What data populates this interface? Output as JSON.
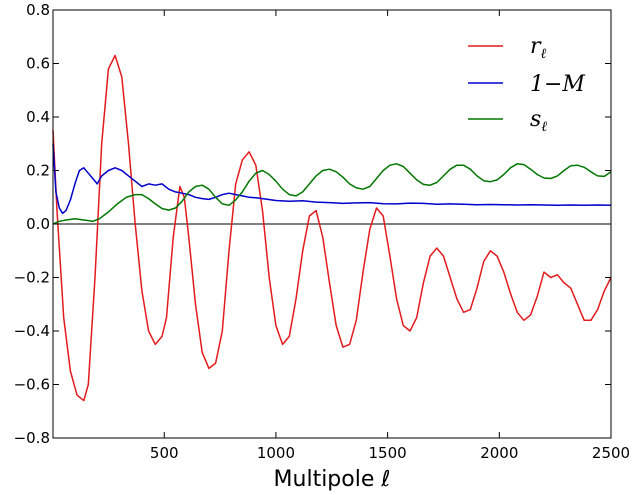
{
  "chart_data": {
    "type": "line",
    "xlabel": "Multipole ℓ",
    "ylabel": "",
    "xlim": [
      2,
      2500
    ],
    "ylim": [
      -0.8,
      0.8
    ],
    "x_ticks": [
      500,
      1000,
      1500,
      2000,
      2500
    ],
    "x_tick_labels": [
      "500",
      "1000",
      "1500",
      "2000",
      "2500"
    ],
    "y_ticks": [
      -0.8,
      -0.6,
      -0.4,
      -0.2,
      0.0,
      0.2,
      0.4,
      0.6,
      0.8
    ],
    "y_tick_labels": [
      "−0.8",
      "−0.6",
      "−0.4",
      "−0.2",
      "0.0",
      "0.2",
      "0.4",
      "0.6",
      "0.8"
    ],
    "zero_line": true,
    "grid": false,
    "legend_position": "top-right",
    "series": [
      {
        "name": "r_ℓ",
        "label_main": "r",
        "label_sub": "ℓ",
        "color": "#e41a1c",
        "x": [
          2,
          20,
          50,
          80,
          110,
          140,
          160,
          190,
          220,
          250,
          280,
          310,
          340,
          370,
          400,
          430,
          460,
          490,
          510,
          540,
          570,
          590,
          610,
          640,
          670,
          700,
          730,
          760,
          790,
          820,
          850,
          880,
          910,
          940,
          970,
          1000,
          1030,
          1060,
          1090,
          1120,
          1150,
          1180,
          1210,
          1240,
          1270,
          1300,
          1330,
          1360,
          1390,
          1420,
          1450,
          1480,
          1510,
          1540,
          1570,
          1600,
          1630,
          1660,
          1690,
          1720,
          1750,
          1780,
          1810,
          1840,
          1870,
          1900,
          1930,
          1960,
          1990,
          2020,
          2050,
          2080,
          2110,
          2140,
          2170,
          2200,
          2230,
          2260,
          2290,
          2320,
          2350,
          2380,
          2410,
          2440,
          2470,
          2500
        ],
        "y": [
          0.35,
          0.05,
          -0.35,
          -0.55,
          -0.64,
          -0.66,
          -0.6,
          -0.2,
          0.3,
          0.58,
          0.63,
          0.55,
          0.3,
          0.0,
          -0.25,
          -0.4,
          -0.45,
          -0.42,
          -0.35,
          -0.05,
          0.14,
          0.1,
          -0.05,
          -0.3,
          -0.48,
          -0.54,
          -0.52,
          -0.4,
          -0.1,
          0.15,
          0.24,
          0.27,
          0.22,
          0.05,
          -0.2,
          -0.38,
          -0.45,
          -0.42,
          -0.28,
          -0.1,
          0.03,
          0.05,
          -0.05,
          -0.22,
          -0.38,
          -0.46,
          -0.45,
          -0.36,
          -0.18,
          -0.02,
          0.06,
          0.03,
          -0.12,
          -0.28,
          -0.38,
          -0.4,
          -0.35,
          -0.22,
          -0.12,
          -0.09,
          -0.12,
          -0.2,
          -0.28,
          -0.33,
          -0.32,
          -0.24,
          -0.14,
          -0.1,
          -0.12,
          -0.18,
          -0.26,
          -0.33,
          -0.36,
          -0.34,
          -0.27,
          -0.18,
          -0.2,
          -0.19,
          -0.22,
          -0.24,
          -0.3,
          -0.36,
          -0.36,
          -0.32,
          -0.25,
          -0.2
        ]
      },
      {
        "name": "1−M",
        "label_main": "1−M",
        "label_sub": "",
        "color": "#0000cc",
        "x": [
          2,
          15,
          30,
          45,
          60,
          80,
          100,
          120,
          140,
          160,
          180,
          200,
          220,
          250,
          280,
          310,
          340,
          370,
          400,
          430,
          460,
          490,
          520,
          550,
          580,
          610,
          640,
          670,
          700,
          730,
          760,
          790,
          820,
          850,
          880,
          910,
          940,
          1000,
          1060,
          1120,
          1180,
          1240,
          1300,
          1360,
          1420,
          1480,
          1540,
          1600,
          1660,
          1720,
          1780,
          1840,
          1900,
          1960,
          2020,
          2080,
          2140,
          2200,
          2260,
          2320,
          2380,
          2440,
          2500
        ],
        "y": [
          0.3,
          0.12,
          0.06,
          0.04,
          0.05,
          0.09,
          0.15,
          0.2,
          0.21,
          0.19,
          0.17,
          0.15,
          0.18,
          0.2,
          0.21,
          0.2,
          0.18,
          0.16,
          0.14,
          0.15,
          0.145,
          0.15,
          0.13,
          0.12,
          0.115,
          0.11,
          0.1,
          0.095,
          0.092,
          0.1,
          0.11,
          0.115,
          0.11,
          0.105,
          0.1,
          0.098,
          0.095,
          0.088,
          0.085,
          0.087,
          0.082,
          0.08,
          0.077,
          0.079,
          0.08,
          0.076,
          0.075,
          0.078,
          0.077,
          0.074,
          0.075,
          0.074,
          0.072,
          0.073,
          0.072,
          0.071,
          0.072,
          0.071,
          0.07,
          0.071,
          0.07,
          0.071,
          0.07
        ]
      },
      {
        "name": "s_ℓ",
        "label_main": "s",
        "label_sub": "ℓ",
        "color": "#007700",
        "x": [
          2,
          30,
          60,
          100,
          140,
          180,
          210,
          250,
          290,
          330,
          370,
          400,
          430,
          460,
          490,
          520,
          550,
          580,
          610,
          640,
          670,
          700,
          730,
          760,
          790,
          820,
          850,
          880,
          910,
          940,
          970,
          1000,
          1030,
          1060,
          1090,
          1120,
          1150,
          1180,
          1210,
          1240,
          1270,
          1300,
          1330,
          1360,
          1390,
          1420,
          1450,
          1480,
          1510,
          1540,
          1570,
          1600,
          1630,
          1660,
          1690,
          1720,
          1750,
          1780,
          1810,
          1840,
          1870,
          1900,
          1930,
          1960,
          1990,
          2020,
          2050,
          2080,
          2110,
          2140,
          2170,
          2200,
          2230,
          2260,
          2290,
          2320,
          2350,
          2380,
          2410,
          2440,
          2470,
          2500
        ],
        "y": [
          0.0,
          0.01,
          0.015,
          0.02,
          0.015,
          0.01,
          0.02,
          0.045,
          0.075,
          0.1,
          0.11,
          0.11,
          0.095,
          0.075,
          0.058,
          0.052,
          0.06,
          0.085,
          0.12,
          0.14,
          0.145,
          0.13,
          0.1,
          0.075,
          0.07,
          0.09,
          0.12,
          0.16,
          0.19,
          0.2,
          0.185,
          0.16,
          0.13,
          0.11,
          0.105,
          0.12,
          0.15,
          0.18,
          0.2,
          0.205,
          0.195,
          0.175,
          0.15,
          0.135,
          0.13,
          0.14,
          0.17,
          0.2,
          0.22,
          0.225,
          0.215,
          0.19,
          0.165,
          0.148,
          0.145,
          0.155,
          0.18,
          0.205,
          0.22,
          0.22,
          0.205,
          0.18,
          0.162,
          0.158,
          0.165,
          0.185,
          0.21,
          0.225,
          0.222,
          0.205,
          0.185,
          0.172,
          0.17,
          0.18,
          0.2,
          0.218,
          0.22,
          0.212,
          0.195,
          0.18,
          0.178,
          0.195
        ]
      }
    ]
  }
}
